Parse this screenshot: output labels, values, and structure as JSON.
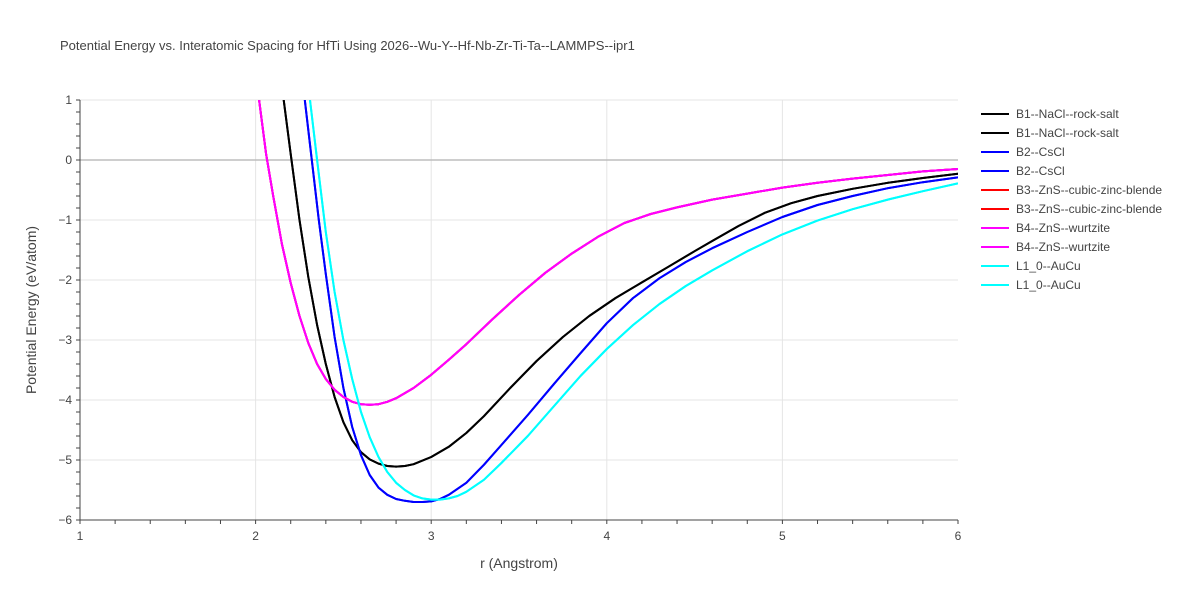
{
  "chart_data": {
    "type": "line",
    "title": "Potential Energy vs. Interatomic Spacing for HfTi Using 2026--Wu-Y--Hf-Nb-Zr-Ti-Ta--LAMMPS--ipr1",
    "xlabel": "r (Angstrom)",
    "ylabel": "Potential Energy (eV/atom)",
    "xlim": [
      1,
      6
    ],
    "ylim": [
      -6,
      1
    ],
    "xticks": [
      "1",
      "2",
      "3",
      "4",
      "5",
      "6"
    ],
    "yticks": [
      "1",
      "0",
      "−1",
      "−2",
      "−3",
      "−4",
      "−5",
      "−6"
    ],
    "grid": true,
    "legend_position": "right",
    "series": [
      {
        "name": "B1--NaCl--rock-salt",
        "color": "#000000",
        "x": [
          2.16,
          2.2,
          2.25,
          2.3,
          2.35,
          2.4,
          2.45,
          2.5,
          2.55,
          2.6,
          2.65,
          2.7,
          2.75,
          2.8,
          2.85,
          2.9,
          3.0,
          3.1,
          3.2,
          3.3,
          3.45,
          3.6,
          3.75,
          3.9,
          4.05,
          4.2,
          4.35,
          4.5,
          4.6,
          4.75,
          4.9,
          5.05,
          5.2,
          5.4,
          5.6,
          5.8,
          6.0
        ],
        "y": [
          1.0,
          0.1,
          -1.0,
          -1.95,
          -2.75,
          -3.4,
          -3.95,
          -4.37,
          -4.67,
          -4.87,
          -4.99,
          -5.06,
          -5.1,
          -5.11,
          -5.1,
          -5.07,
          -4.95,
          -4.78,
          -4.55,
          -4.27,
          -3.8,
          -3.35,
          -2.95,
          -2.6,
          -2.3,
          -2.04,
          -1.78,
          -1.52,
          -1.35,
          -1.1,
          -0.88,
          -0.72,
          -0.6,
          -0.48,
          -0.38,
          -0.3,
          -0.23
        ]
      },
      {
        "name": "B1--NaCl--rock-salt",
        "color": "#000000",
        "x": [
          2.16,
          2.2,
          2.25,
          2.3,
          2.35,
          2.4,
          2.45,
          2.5,
          2.55,
          2.6,
          2.65,
          2.7,
          2.75,
          2.8,
          2.85,
          2.9,
          3.0,
          3.1,
          3.2,
          3.3,
          3.45,
          3.6,
          3.75,
          3.9,
          4.05,
          4.2,
          4.35,
          4.5,
          4.6,
          4.75,
          4.9,
          5.05,
          5.2,
          5.4,
          5.6,
          5.8,
          6.0
        ],
        "y": [
          1.0,
          0.1,
          -1.0,
          -1.95,
          -2.75,
          -3.4,
          -3.95,
          -4.37,
          -4.67,
          -4.87,
          -4.99,
          -5.06,
          -5.1,
          -5.11,
          -5.1,
          -5.07,
          -4.95,
          -4.78,
          -4.55,
          -4.27,
          -3.8,
          -3.35,
          -2.95,
          -2.6,
          -2.3,
          -2.04,
          -1.78,
          -1.52,
          -1.35,
          -1.1,
          -0.88,
          -0.72,
          -0.6,
          -0.48,
          -0.38,
          -0.3,
          -0.23
        ]
      },
      {
        "name": "B2--CsCl",
        "color": "#0000ff",
        "x": [
          2.28,
          2.32,
          2.36,
          2.4,
          2.45,
          2.5,
          2.55,
          2.6,
          2.65,
          2.7,
          2.75,
          2.8,
          2.85,
          2.9,
          2.95,
          3.0,
          3.05,
          3.1,
          3.2,
          3.3,
          3.4,
          3.55,
          3.7,
          3.85,
          4.0,
          4.15,
          4.3,
          4.45,
          4.6,
          4.8,
          5.0,
          5.2,
          5.4,
          5.6,
          5.8,
          6.0
        ],
        "y": [
          1.0,
          0.0,
          -1.0,
          -1.9,
          -2.95,
          -3.8,
          -4.45,
          -4.92,
          -5.25,
          -5.46,
          -5.58,
          -5.65,
          -5.68,
          -5.7,
          -5.7,
          -5.69,
          -5.65,
          -5.58,
          -5.38,
          -5.08,
          -4.75,
          -4.25,
          -3.73,
          -3.22,
          -2.72,
          -2.3,
          -1.97,
          -1.7,
          -1.47,
          -1.2,
          -0.95,
          -0.75,
          -0.6,
          -0.47,
          -0.37,
          -0.29
        ]
      },
      {
        "name": "B2--CsCl",
        "color": "#0000ff",
        "x": [
          2.28,
          2.32,
          2.36,
          2.4,
          2.45,
          2.5,
          2.55,
          2.6,
          2.65,
          2.7,
          2.75,
          2.8,
          2.85,
          2.9,
          2.95,
          3.0,
          3.05,
          3.1,
          3.2,
          3.3,
          3.4,
          3.55,
          3.7,
          3.85,
          4.0,
          4.15,
          4.3,
          4.45,
          4.6,
          4.8,
          5.0,
          5.2,
          5.4,
          5.6,
          5.8,
          6.0
        ],
        "y": [
          1.0,
          0.0,
          -1.0,
          -1.9,
          -2.95,
          -3.8,
          -4.45,
          -4.92,
          -5.25,
          -5.46,
          -5.58,
          -5.65,
          -5.68,
          -5.7,
          -5.7,
          -5.69,
          -5.65,
          -5.58,
          -5.38,
          -5.08,
          -4.75,
          -4.25,
          -3.73,
          -3.22,
          -2.72,
          -2.3,
          -1.97,
          -1.7,
          -1.47,
          -1.2,
          -0.95,
          -0.75,
          -0.6,
          -0.47,
          -0.37,
          -0.29
        ]
      },
      {
        "name": "B3--ZnS--cubic-zinc-blende",
        "color": "#ff0000",
        "x": [
          2.02,
          2.06,
          2.1,
          2.15,
          2.2,
          2.25,
          2.3,
          2.35,
          2.4,
          2.45,
          2.5,
          2.55,
          2.6,
          2.65,
          2.7,
          2.75,
          2.8,
          2.9,
          3.0,
          3.1,
          3.2,
          3.35,
          3.5,
          3.65,
          3.8,
          3.95,
          4.1,
          4.25,
          4.4,
          4.6,
          4.8,
          5.0,
          5.2,
          5.4,
          5.6,
          5.8,
          6.0
        ],
        "y": [
          1.0,
          0.1,
          -0.6,
          -1.4,
          -2.05,
          -2.6,
          -3.05,
          -3.4,
          -3.65,
          -3.83,
          -3.95,
          -4.03,
          -4.07,
          -4.08,
          -4.07,
          -4.03,
          -3.97,
          -3.8,
          -3.58,
          -3.33,
          -3.07,
          -2.65,
          -2.25,
          -1.88,
          -1.56,
          -1.28,
          -1.05,
          -0.9,
          -0.79,
          -0.66,
          -0.56,
          -0.46,
          -0.38,
          -0.31,
          -0.25,
          -0.19,
          -0.15
        ]
      },
      {
        "name": "B3--ZnS--cubic-zinc-blende",
        "color": "#ff0000",
        "x": [
          2.02,
          2.06,
          2.1,
          2.15,
          2.2,
          2.25,
          2.3,
          2.35,
          2.4,
          2.45,
          2.5,
          2.55,
          2.6,
          2.65,
          2.7,
          2.75,
          2.8,
          2.9,
          3.0,
          3.1,
          3.2,
          3.35,
          3.5,
          3.65,
          3.8,
          3.95,
          4.1,
          4.25,
          4.4,
          4.6,
          4.8,
          5.0,
          5.2,
          5.4,
          5.6,
          5.8,
          6.0
        ],
        "y": [
          1.0,
          0.1,
          -0.6,
          -1.4,
          -2.05,
          -2.6,
          -3.05,
          -3.4,
          -3.65,
          -3.83,
          -3.95,
          -4.03,
          -4.07,
          -4.08,
          -4.07,
          -4.03,
          -3.97,
          -3.8,
          -3.58,
          -3.33,
          -3.07,
          -2.65,
          -2.25,
          -1.88,
          -1.56,
          -1.28,
          -1.05,
          -0.9,
          -0.79,
          -0.66,
          -0.56,
          -0.46,
          -0.38,
          -0.31,
          -0.25,
          -0.19,
          -0.15
        ]
      },
      {
        "name": "B4--ZnS--wurtzite",
        "color": "#ff00ff",
        "x": [
          2.02,
          2.06,
          2.1,
          2.15,
          2.2,
          2.25,
          2.3,
          2.35,
          2.4,
          2.45,
          2.5,
          2.55,
          2.6,
          2.65,
          2.7,
          2.75,
          2.8,
          2.9,
          3.0,
          3.1,
          3.2,
          3.35,
          3.5,
          3.65,
          3.8,
          3.95,
          4.1,
          4.25,
          4.4,
          4.6,
          4.8,
          5.0,
          5.2,
          5.4,
          5.6,
          5.8,
          6.0
        ],
        "y": [
          1.0,
          0.1,
          -0.6,
          -1.4,
          -2.05,
          -2.6,
          -3.05,
          -3.4,
          -3.65,
          -3.83,
          -3.95,
          -4.03,
          -4.07,
          -4.08,
          -4.07,
          -4.03,
          -3.97,
          -3.8,
          -3.58,
          -3.33,
          -3.07,
          -2.65,
          -2.25,
          -1.88,
          -1.56,
          -1.28,
          -1.05,
          -0.9,
          -0.79,
          -0.66,
          -0.56,
          -0.46,
          -0.38,
          -0.31,
          -0.25,
          -0.19,
          -0.15
        ]
      },
      {
        "name": "B4--ZnS--wurtzite",
        "color": "#ff00ff",
        "x": [
          2.02,
          2.06,
          2.1,
          2.15,
          2.2,
          2.25,
          2.3,
          2.35,
          2.4,
          2.45,
          2.5,
          2.55,
          2.6,
          2.65,
          2.7,
          2.75,
          2.8,
          2.9,
          3.0,
          3.1,
          3.2,
          3.35,
          3.5,
          3.65,
          3.8,
          3.95,
          4.1,
          4.25,
          4.4,
          4.6,
          4.8,
          5.0,
          5.2,
          5.4,
          5.6,
          5.8,
          6.0
        ],
        "y": [
          1.0,
          0.1,
          -0.6,
          -1.4,
          -2.05,
          -2.6,
          -3.05,
          -3.4,
          -3.65,
          -3.83,
          -3.95,
          -4.03,
          -4.07,
          -4.08,
          -4.07,
          -4.03,
          -3.97,
          -3.8,
          -3.58,
          -3.33,
          -3.07,
          -2.65,
          -2.25,
          -1.88,
          -1.56,
          -1.28,
          -1.05,
          -0.9,
          -0.79,
          -0.66,
          -0.56,
          -0.46,
          -0.38,
          -0.31,
          -0.25,
          -0.19,
          -0.15
        ]
      },
      {
        "name": "L1_0--AuCu",
        "color": "#00ffff",
        "x": [
          2.31,
          2.35,
          2.4,
          2.45,
          2.5,
          2.55,
          2.6,
          2.65,
          2.7,
          2.75,
          2.8,
          2.85,
          2.9,
          2.95,
          3.0,
          3.05,
          3.1,
          3.15,
          3.2,
          3.3,
          3.4,
          3.55,
          3.7,
          3.85,
          4.0,
          4.15,
          4.3,
          4.45,
          4.6,
          4.8,
          5.0,
          5.2,
          5.4,
          5.6,
          5.8,
          6.0
        ],
        "y": [
          1.0,
          0.0,
          -1.2,
          -2.2,
          -3.0,
          -3.65,
          -4.2,
          -4.62,
          -4.95,
          -5.2,
          -5.38,
          -5.5,
          -5.59,
          -5.64,
          -5.66,
          -5.66,
          -5.64,
          -5.6,
          -5.53,
          -5.33,
          -5.05,
          -4.6,
          -4.1,
          -3.6,
          -3.15,
          -2.75,
          -2.4,
          -2.1,
          -1.84,
          -1.52,
          -1.24,
          -1.01,
          -0.82,
          -0.66,
          -0.52,
          -0.39
        ]
      },
      {
        "name": "L1_0--AuCu",
        "color": "#00ffff",
        "x": [
          2.31,
          2.35,
          2.4,
          2.45,
          2.5,
          2.55,
          2.6,
          2.65,
          2.7,
          2.75,
          2.8,
          2.85,
          2.9,
          2.95,
          3.0,
          3.05,
          3.1,
          3.15,
          3.2,
          3.3,
          3.4,
          3.55,
          3.7,
          3.85,
          4.0,
          4.15,
          4.3,
          4.45,
          4.6,
          4.8,
          5.0,
          5.2,
          5.4,
          5.6,
          5.8,
          6.0
        ],
        "y": [
          1.0,
          0.0,
          -1.2,
          -2.2,
          -3.0,
          -3.65,
          -4.2,
          -4.62,
          -4.95,
          -5.2,
          -5.38,
          -5.5,
          -5.59,
          -5.64,
          -5.66,
          -5.66,
          -5.64,
          -5.6,
          -5.53,
          -5.33,
          -5.05,
          -4.6,
          -4.1,
          -3.6,
          -3.15,
          -2.75,
          -2.4,
          -2.1,
          -1.84,
          -1.52,
          -1.24,
          -1.01,
          -0.82,
          -0.66,
          -0.52,
          -0.39
        ]
      }
    ]
  }
}
